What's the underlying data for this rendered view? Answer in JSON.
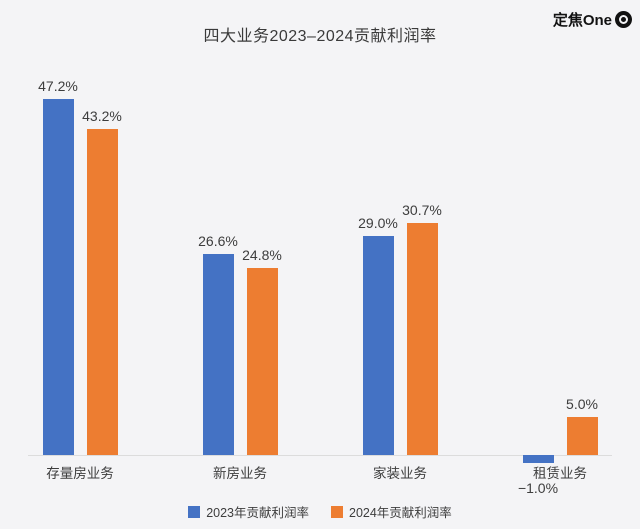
{
  "watermark": {
    "text": "定焦One"
  },
  "chart_data": {
    "type": "bar",
    "title": "四大业务2023–2024贡献利润率",
    "categories": [
      "存量房业务",
      "新房业务",
      "家装业务",
      "租赁业务"
    ],
    "series": [
      {
        "name": "2023年贡献利润率",
        "color": "#4472C4",
        "values": [
          47.2,
          26.6,
          29.0,
          -1.0
        ],
        "labels": [
          "47.2%",
          "26.6%",
          "29.0%",
          "−1.0%"
        ]
      },
      {
        "name": "2024年贡献利润率",
        "color": "#ED7D31",
        "values": [
          43.2,
          24.8,
          30.7,
          5.0
        ],
        "labels": [
          "43.2%",
          "24.8%",
          "30.7%",
          "5.0%"
        ]
      }
    ],
    "ylim": [
      -5,
      52
    ],
    "grid": false,
    "legend_position": "bottom",
    "value_label_format": "percent"
  },
  "colors": {
    "background": "#f4f4f6",
    "text": "#3d3d3d",
    "baseline": "#dcdcdc"
  }
}
